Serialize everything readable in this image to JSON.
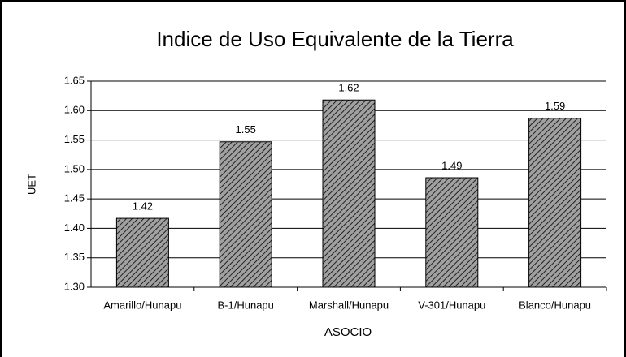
{
  "chart_data": {
    "type": "bar",
    "title": "Indice de Uso Equivalente de la Tierra",
    "x_label": "ASOCIO",
    "y_label": "UET",
    "categories": [
      "Amarillo/Hunapu",
      "B-1/Hunapu",
      "Marshall/Hunapu",
      "V-301/Hunapu",
      "Blanco/Hunapu"
    ],
    "values": [
      1.417,
      1.547,
      1.618,
      1.486,
      1.587
    ],
    "value_labels": [
      "1.42",
      "1.55",
      "1.62",
      "1.49",
      "1.59"
    ],
    "color": "#a0a0a0",
    "ylim": [
      1.3,
      1.65
    ],
    "yticks": [
      {
        "value": 1.3,
        "label": "1.30"
      },
      1.35,
      {
        "value": 1.4,
        "label": "1.40"
      },
      1.45,
      {
        "value": 1.5,
        "label": "1.50"
      },
      1.55,
      {
        "value": 1.6,
        "label": "1.60"
      },
      1.65
    ],
    "grid": true
  }
}
